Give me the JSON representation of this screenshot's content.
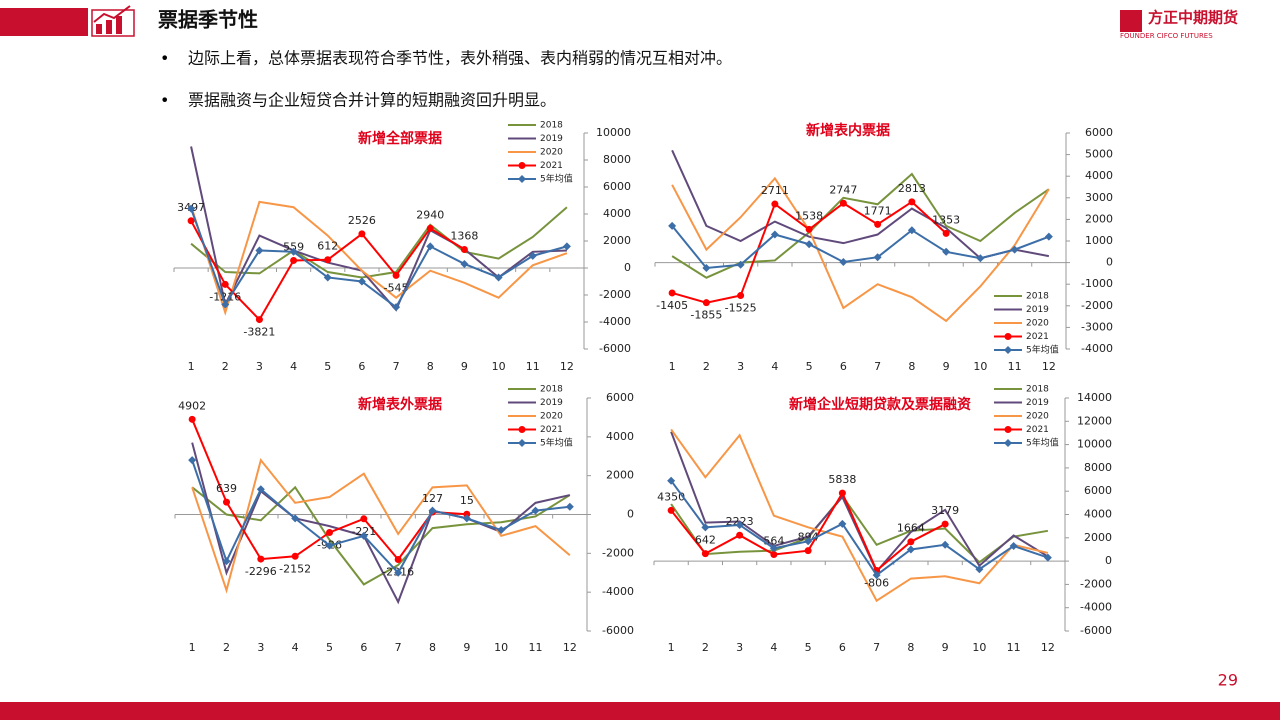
{
  "header": {
    "title": "票据季节性",
    "logo": "方正中期期货",
    "logo_en": "FOUNDER CIFCO FUTURES"
  },
  "bullets": [
    "边际上看，总体票据表现符合季节性，表外稍强、表内稍弱的情况互相对冲。",
    "票据融资与企业短贷合并计算的短期融资回升明显。"
  ],
  "page_number": "29",
  "chart_data": [
    {
      "type": "line",
      "title": "新增全部票据",
      "legend": "upper right",
      "categories": [
        "1",
        "2",
        "3",
        "4",
        "5",
        "6",
        "7",
        "8",
        "9",
        "10",
        "11",
        "12"
      ],
      "ylim": [
        -6000,
        10000
      ],
      "yticks": [
        -6000,
        -4000,
        -2000,
        0,
        2000,
        4000,
        6000,
        8000,
        10000
      ],
      "series": [
        {
          "name": "2018",
          "color": "#77933c",
          "values": [
            1800,
            -300,
            -400,
            1300,
            -300,
            -700,
            -300,
            3200,
            1200,
            700,
            2300,
            4500
          ]
        },
        {
          "name": "2019",
          "color": "#604a7b",
          "values": [
            9000,
            -2700,
            2400,
            1300,
            400,
            -200,
            -3100,
            2800,
            1400,
            -700,
            1200,
            1300
          ]
        },
        {
          "name": "2020",
          "color": "#f79646",
          "values": [
            4600,
            -3300,
            4900,
            4500,
            2400,
            -200,
            -2200,
            -200,
            -1100,
            -2200,
            200,
            1100
          ]
        },
        {
          "name": "2021",
          "color": "#ff0000",
          "marker": "circle",
          "show_labels": true,
          "values": [
            3497,
            -1216,
            -3821,
            559,
            612,
            2526,
            -545,
            2940,
            1368,
            null,
            null,
            null
          ]
        },
        {
          "name": "5年均值",
          "color": "#3c6ea8",
          "marker": "diamond",
          "values": [
            4400,
            -2700,
            1300,
            1200,
            -700,
            -1000,
            -2900,
            1600,
            300,
            -700,
            900,
            1600
          ]
        }
      ]
    },
    {
      "type": "line",
      "title": "新增表内票据",
      "legend": "lower right",
      "categories": [
        "1",
        "2",
        "3",
        "4",
        "5",
        "6",
        "7",
        "8",
        "9",
        "10",
        "11",
        "12"
      ],
      "ylim": [
        -4000,
        6000
      ],
      "yticks": [
        -4000,
        -3000,
        -2000,
        -1000,
        0,
        1000,
        2000,
        3000,
        4000,
        5000,
        6000
      ],
      "series": [
        {
          "name": "2018",
          "color": "#77933c",
          "values": [
            300,
            -700,
            0,
            100,
            1400,
            3000,
            2700,
            4100,
            1700,
            1000,
            2300,
            3400
          ]
        },
        {
          "name": "2019",
          "color": "#604a7b",
          "values": [
            5200,
            1700,
            1000,
            1900,
            1200,
            900,
            1300,
            2500,
            1600,
            200,
            600,
            300
          ]
        },
        {
          "name": "2020",
          "color": "#f79646",
          "values": [
            3600,
            600,
            2100,
            3900,
            1500,
            -2100,
            -1000,
            -1600,
            -2700,
            -1100,
            800,
            3400
          ]
        },
        {
          "name": "2021",
          "color": "#ff0000",
          "marker": "circle",
          "show_labels": true,
          "values": [
            -1405,
            -1855,
            -1525,
            2711,
            1538,
            2747,
            1771,
            2813,
            1353,
            null,
            null,
            null
          ]
        },
        {
          "name": "5年均值",
          "color": "#3c6ea8",
          "marker": "diamond",
          "values": [
            1700,
            -250,
            -100,
            1300,
            850,
            30,
            250,
            1500,
            500,
            200,
            600,
            1200
          ]
        }
      ]
    },
    {
      "type": "line",
      "title": "新增表外票据",
      "legend": "upper right",
      "categories": [
        "1",
        "2",
        "3",
        "4",
        "5",
        "6",
        "7",
        "8",
        "9",
        "10",
        "11",
        "12"
      ],
      "ylim": [
        -6000,
        6000
      ],
      "yticks": [
        -6000,
        -4000,
        -2000,
        0,
        2000,
        4000,
        6000
      ],
      "series": [
        {
          "name": "2018",
          "color": "#77933c",
          "values": [
            1400,
            0,
            -300,
            1400,
            -1300,
            -3600,
            -2600,
            -700,
            -500,
            -400,
            -100,
            1000
          ]
        },
        {
          "name": "2019",
          "color": "#604a7b",
          "values": [
            3700,
            -3000,
            1200,
            -200,
            -600,
            -1100,
            -4500,
            200,
            -200,
            -900,
            600,
            1000
          ]
        },
        {
          "name": "2020",
          "color": "#f79646",
          "values": [
            1400,
            -3900,
            2800,
            600,
            900,
            2100,
            -1000,
            1400,
            1500,
            -1100,
            -600,
            -2100
          ]
        },
        {
          "name": "2021",
          "color": "#ff0000",
          "marker": "circle",
          "show_labels": true,
          "values": [
            4902,
            639,
            -2296,
            -2152,
            -926,
            -221,
            -2316,
            127,
            15,
            null,
            null,
            null
          ]
        },
        {
          "name": "5年均值",
          "color": "#3c6ea8",
          "marker": "diamond",
          "values": [
            2800,
            -2400,
            1300,
            -200,
            -1600,
            -1100,
            -3000,
            200,
            -200,
            -800,
            200,
            400
          ]
        }
      ]
    },
    {
      "type": "line",
      "title": "新增企业短期贷款及票据融资",
      "legend": "upper right",
      "categories": [
        "1",
        "2",
        "3",
        "4",
        "5",
        "6",
        "7",
        "8",
        "9",
        "10",
        "11",
        "12"
      ],
      "ylim": [
        -6000,
        14000
      ],
      "yticks": [
        -6000,
        -4000,
        -2000,
        0,
        2000,
        4000,
        6000,
        8000,
        10000,
        12000,
        14000
      ],
      "series": [
        {
          "name": "2018",
          "color": "#77933c",
          "values": [
            4900,
            600,
            800,
            900,
            2000,
            5600,
            1400,
            2600,
            2800,
            -100,
            2100,
            2600
          ]
        },
        {
          "name": "2019",
          "color": "#604a7b",
          "values": [
            11100,
            3300,
            3400,
            1300,
            2100,
            5500,
            -900,
            2500,
            4400,
            -400,
            2200,
            400
          ]
        },
        {
          "name": "2020",
          "color": "#f79646",
          "values": [
            11300,
            7200,
            10800,
            3900,
            2900,
            2100,
            -3400,
            -1500,
            -1300,
            -1900,
            1400,
            700
          ]
        },
        {
          "name": "2021",
          "color": "#ff0000",
          "marker": "circle",
          "show_labels": true,
          "values": [
            4350,
            642,
            2223,
            564,
            894,
            5838,
            -806,
            1664,
            3179,
            null,
            null,
            null
          ]
        },
        {
          "name": "5年均值",
          "color": "#3c6ea8",
          "marker": "diamond",
          "values": [
            6900,
            2900,
            3100,
            1100,
            1700,
            3200,
            -1200,
            1000,
            1400,
            -700,
            1300,
            300
          ]
        }
      ]
    }
  ]
}
